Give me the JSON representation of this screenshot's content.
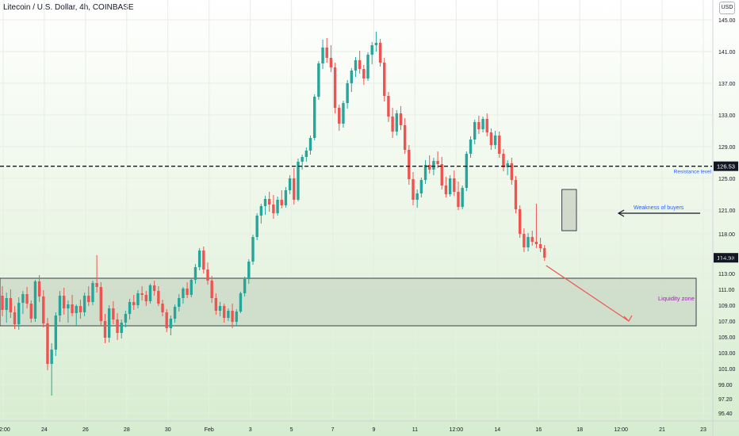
{
  "header": {
    "title": "Litecoin / U.S. Dollar, 4h, COINBASE",
    "currency_badge": "USD"
  },
  "colors": {
    "up": "#26a69a",
    "down": "#ef5350",
    "zone_fill": "#c9d8c6",
    "price_label_bg": "#131722",
    "annotation_blue": "#2962ff",
    "annotation_purple": "#9c27b0"
  },
  "chart_data": {
    "type": "candlestick",
    "title": "Litecoin / U.S. Dollar, 4h, COINBASE",
    "y_axis": {
      "ticks": [
        "145.00",
        "141.00",
        "137.00",
        "133.00",
        "129.00",
        "125.00",
        "121.00",
        "118.00",
        "115.00",
        "113.00",
        "111.00",
        "109.00",
        "107.00",
        "105.00",
        "103.00",
        "101.00",
        "99.00",
        "97.20",
        "95.40"
      ],
      "range": [
        94.5,
        147.5
      ]
    },
    "x_axis": {
      "ticks": [
        "12:00",
        "24",
        "26",
        "28",
        "30",
        "Feb",
        "3",
        "5",
        "7",
        "9",
        "11",
        "12:00",
        "14",
        "16",
        "18",
        "12:00",
        "21",
        "23"
      ]
    },
    "last_price": "114.98",
    "resistance_price": "126.53",
    "candles": [
      [
        110.2,
        111.4,
        107.6,
        108.4
      ],
      [
        108.4,
        110.6,
        106.8,
        109.9
      ],
      [
        109.9,
        111.0,
        107.4,
        108.1
      ],
      [
        108.1,
        108.9,
        106.0,
        106.6
      ],
      [
        106.6,
        110.0,
        105.9,
        109.3
      ],
      [
        109.3,
        110.8,
        107.9,
        110.4
      ],
      [
        110.4,
        111.3,
        108.6,
        109.2
      ],
      [
        109.2,
        109.6,
        106.8,
        107.3
      ],
      [
        107.3,
        112.2,
        106.9,
        112.0
      ],
      [
        112.0,
        112.8,
        109.4,
        110.1
      ],
      [
        110.1,
        110.9,
        106.2,
        106.7
      ],
      [
        106.7,
        107.4,
        100.8,
        101.6
      ],
      [
        101.6,
        104.2,
        97.6,
        103.4
      ],
      [
        103.4,
        108.1,
        102.6,
        107.7
      ],
      [
        107.7,
        110.8,
        106.9,
        110.2
      ],
      [
        110.2,
        111.2,
        107.8,
        108.6
      ],
      [
        108.6,
        109.6,
        106.8,
        109.1
      ],
      [
        109.1,
        110.3,
        107.6,
        108.0
      ],
      [
        108.0,
        109.1,
        106.4,
        108.9
      ],
      [
        108.9,
        109.7,
        107.3,
        108.1
      ],
      [
        108.1,
        110.6,
        107.6,
        110.2
      ],
      [
        110.2,
        111.4,
        108.9,
        109.4
      ],
      [
        109.4,
        112.1,
        109.0,
        111.8
      ],
      [
        111.8,
        115.3,
        110.6,
        111.3
      ],
      [
        111.3,
        111.9,
        106.4,
        107.0
      ],
      [
        107.0,
        107.9,
        104.2,
        104.9
      ],
      [
        104.9,
        109.0,
        104.3,
        108.6
      ],
      [
        108.6,
        109.5,
        106.6,
        107.2
      ],
      [
        107.2,
        108.0,
        104.6,
        105.5
      ],
      [
        105.5,
        107.2,
        104.8,
        106.8
      ],
      [
        106.8,
        108.3,
        106.2,
        107.9
      ],
      [
        107.9,
        109.8,
        107.2,
        109.4
      ],
      [
        109.4,
        110.3,
        108.4,
        109.0
      ],
      [
        109.0,
        110.9,
        108.6,
        110.5
      ],
      [
        110.5,
        111.4,
        109.6,
        110.3
      ],
      [
        110.3,
        110.8,
        108.9,
        109.5
      ],
      [
        109.5,
        111.7,
        109.2,
        111.5
      ],
      [
        111.5,
        112.1,
        110.2,
        110.8
      ],
      [
        110.8,
        111.4,
        108.9,
        109.2
      ],
      [
        109.2,
        109.7,
        107.6,
        108.1
      ],
      [
        108.1,
        108.5,
        105.6,
        106.1
      ],
      [
        106.1,
        107.7,
        105.2,
        107.3
      ],
      [
        107.3,
        109.1,
        106.8,
        108.8
      ],
      [
        108.8,
        110.4,
        108.2,
        109.9
      ],
      [
        109.9,
        111.3,
        109.2,
        111.1
      ],
      [
        111.1,
        111.9,
        109.9,
        110.3
      ],
      [
        110.3,
        112.4,
        110.0,
        112.2
      ],
      [
        112.2,
        114.2,
        111.7,
        113.8
      ],
      [
        113.8,
        116.2,
        113.4,
        115.9
      ],
      [
        115.9,
        116.4,
        113.0,
        113.5
      ],
      [
        113.5,
        114.4,
        111.6,
        112.1
      ],
      [
        112.1,
        112.7,
        109.3,
        109.9
      ],
      [
        109.9,
        110.5,
        107.8,
        108.3
      ],
      [
        108.3,
        109.4,
        107.6,
        108.9
      ],
      [
        108.9,
        109.2,
        106.8,
        107.4
      ],
      [
        107.4,
        108.6,
        107.0,
        108.3
      ],
      [
        108.3,
        109.2,
        106.1,
        106.9
      ],
      [
        106.9,
        108.5,
        106.4,
        108.2
      ],
      [
        108.2,
        110.7,
        108.0,
        110.5
      ],
      [
        110.5,
        112.6,
        110.1,
        112.3
      ],
      [
        112.3,
        114.8,
        111.7,
        114.5
      ],
      [
        114.5,
        117.9,
        114.1,
        117.6
      ],
      [
        117.6,
        120.6,
        117.2,
        120.3
      ],
      [
        120.3,
        121.8,
        119.3,
        121.5
      ],
      [
        121.5,
        122.8,
        120.4,
        122.4
      ],
      [
        122.4,
        123.3,
        120.8,
        121.7
      ],
      [
        121.7,
        122.9,
        119.9,
        120.6
      ],
      [
        120.6,
        122.7,
        120.3,
        122.3
      ],
      [
        122.3,
        123.5,
        121.2,
        121.6
      ],
      [
        121.6,
        123.9,
        121.3,
        123.5
      ],
      [
        123.5,
        125.4,
        123.0,
        125.0
      ],
      [
        125.0,
        126.3,
        121.7,
        122.3
      ],
      [
        122.3,
        127.5,
        122.1,
        127.1
      ],
      [
        127.1,
        128.0,
        126.1,
        127.7
      ],
      [
        127.7,
        128.9,
        127.1,
        128.5
      ],
      [
        128.5,
        130.4,
        128.0,
        130.1
      ],
      [
        130.1,
        135.6,
        129.8,
        135.3
      ],
      [
        135.3,
        139.8,
        134.9,
        139.5
      ],
      [
        139.5,
        142.5,
        138.8,
        141.5
      ],
      [
        141.5,
        142.7,
        139.6,
        140.2
      ],
      [
        140.2,
        141.8,
        138.4,
        139.0
      ],
      [
        139.0,
        139.6,
        133.2,
        133.9
      ],
      [
        133.9,
        134.3,
        131.0,
        131.9
      ],
      [
        131.9,
        134.8,
        131.4,
        134.5
      ],
      [
        134.5,
        137.4,
        133.8,
        137.0
      ],
      [
        137.0,
        138.9,
        135.9,
        138.6
      ],
      [
        138.6,
        140.3,
        137.8,
        139.9
      ],
      [
        139.9,
        141.1,
        138.2,
        138.8
      ],
      [
        138.8,
        139.3,
        136.8,
        137.6
      ],
      [
        137.6,
        140.9,
        137.3,
        140.6
      ],
      [
        140.6,
        142.2,
        139.4,
        141.8
      ],
      [
        141.8,
        143.5,
        141.0,
        142.1
      ],
      [
        142.1,
        142.6,
        139.1,
        139.6
      ],
      [
        139.6,
        140.2,
        134.7,
        135.4
      ],
      [
        135.4,
        135.9,
        132.1,
        132.8
      ],
      [
        132.8,
        133.9,
        130.1,
        130.9
      ],
      [
        130.9,
        133.6,
        130.4,
        133.2
      ],
      [
        133.2,
        134.1,
        131.1,
        131.7
      ],
      [
        131.7,
        132.6,
        128.1,
        128.6
      ],
      [
        128.6,
        129.2,
        124.2,
        124.9
      ],
      [
        124.9,
        125.8,
        121.6,
        122.3
      ],
      [
        122.3,
        123.6,
        121.3,
        123.1
      ],
      [
        123.1,
        125.1,
        122.6,
        124.8
      ],
      [
        124.8,
        127.3,
        124.3,
        126.7
      ],
      [
        126.7,
        127.9,
        125.6,
        126.1
      ],
      [
        126.1,
        127.6,
        125.4,
        127.2
      ],
      [
        127.2,
        128.4,
        126.3,
        126.8
      ],
      [
        126.8,
        127.7,
        123.6,
        124.1
      ],
      [
        124.1,
        125.2,
        122.6,
        123.0
      ],
      [
        123.0,
        125.4,
        122.7,
        125.0
      ],
      [
        125.0,
        126.0,
        122.8,
        123.3
      ],
      [
        123.3,
        124.6,
        121.0,
        121.4
      ],
      [
        121.4,
        124.1,
        121.1,
        123.8
      ],
      [
        123.8,
        128.4,
        123.4,
        128.1
      ],
      [
        128.1,
        130.3,
        127.6,
        129.9
      ],
      [
        129.9,
        132.4,
        129.3,
        132.1
      ],
      [
        132.1,
        132.9,
        130.6,
        131.2
      ],
      [
        131.2,
        132.8,
        130.8,
        132.5
      ],
      [
        132.5,
        133.2,
        130.3,
        130.8
      ],
      [
        130.8,
        131.3,
        128.6,
        129.2
      ],
      [
        129.2,
        131.0,
        128.7,
        130.4
      ],
      [
        130.4,
        130.9,
        127.6,
        128.1
      ],
      [
        128.1,
        128.7,
        125.9,
        126.4
      ],
      [
        126.4,
        127.3,
        125.4,
        126.9
      ],
      [
        126.9,
        127.6,
        124.2,
        124.8
      ],
      [
        124.8,
        125.3,
        120.6,
        121.1
      ],
      [
        121.1,
        121.6,
        117.5,
        118.0
      ],
      [
        118.0,
        118.7,
        115.7,
        116.3
      ],
      [
        116.3,
        118.1,
        115.8,
        117.6
      ],
      [
        117.6,
        118.4,
        116.5,
        117.0
      ],
      [
        117.0,
        121.8,
        116.2,
        116.7
      ],
      [
        116.7,
        117.5,
        115.7,
        116.2
      ],
      [
        116.2,
        116.6,
        114.6,
        115.0
      ]
    ],
    "annotations": {
      "resistance_label": "Resistance level",
      "buyers_weakness_label": "Weakness of buyers",
      "liquidity_zone_label": "Liquidity zone"
    }
  }
}
